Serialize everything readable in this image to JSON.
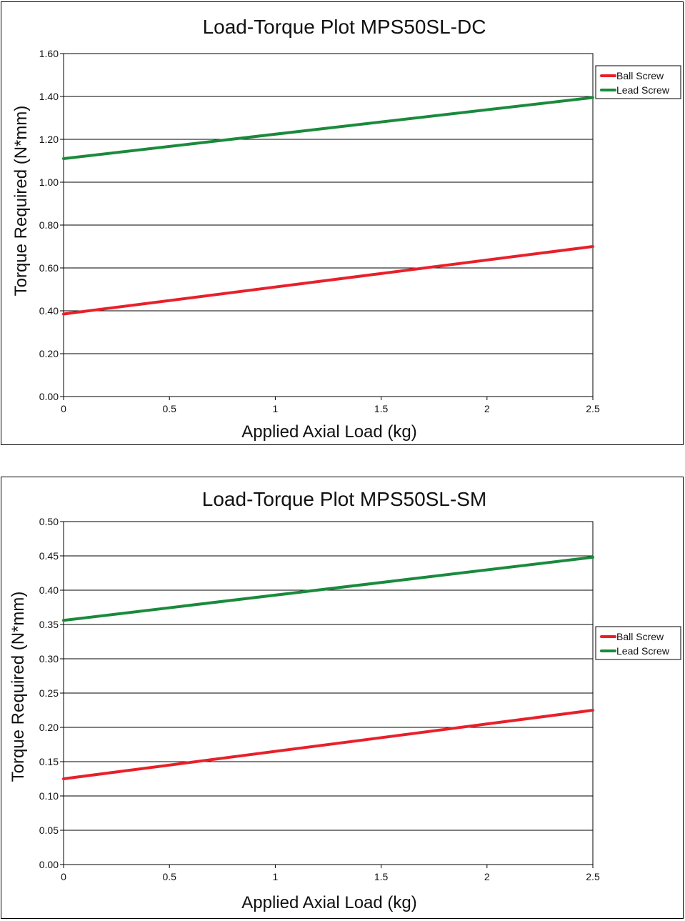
{
  "chart_data": [
    {
      "type": "line",
      "title": "Load-Torque Plot MPS50SL-DC",
      "xlabel": "Applied Axial Load (kg)",
      "ylabel": "Torque Required (N*mm)",
      "xlim": [
        0,
        2.5
      ],
      "ylim": [
        0,
        1.6
      ],
      "x_ticks": [
        "0",
        "0.5",
        "1",
        "1.5",
        "2",
        "2.5"
      ],
      "x_tick_values": [
        0,
        0.5,
        1,
        1.5,
        2,
        2.5
      ],
      "y_ticks": [
        "0.00",
        "0.20",
        "0.40",
        "0.60",
        "0.80",
        "1.00",
        "1.20",
        "1.40",
        "1.60"
      ],
      "y_tick_values": [
        0,
        0.2,
        0.4,
        0.6,
        0.8,
        1.0,
        1.2,
        1.4,
        1.6
      ],
      "grid": "horizontal",
      "legend": "right",
      "series": [
        {
          "name": "Ball Screw",
          "color": "#e8202a",
          "x": [
            0,
            2.5
          ],
          "values": [
            0.385,
            0.7
          ]
        },
        {
          "name": "Lead Screw",
          "color": "#1a8a3c",
          "x": [
            0,
            2.5
          ],
          "values": [
            1.11,
            1.395
          ]
        }
      ]
    },
    {
      "type": "line",
      "title": "Load-Torque Plot MPS50SL-SM",
      "xlabel": "Applied Axial Load (kg)",
      "ylabel": "Torque Required (N*mm)",
      "xlim": [
        0,
        2.5
      ],
      "ylim": [
        0,
        0.5
      ],
      "x_ticks": [
        "0",
        "0.5",
        "1",
        "1.5",
        "2",
        "2.5"
      ],
      "x_tick_values": [
        0,
        0.5,
        1,
        1.5,
        2,
        2.5
      ],
      "y_ticks": [
        "0.00",
        "0.05",
        "0.10",
        "0.15",
        "0.20",
        "0.25",
        "0.30",
        "0.35",
        "0.40",
        "0.45",
        "0.50"
      ],
      "y_tick_values": [
        0,
        0.05,
        0.1,
        0.15,
        0.2,
        0.25,
        0.3,
        0.35,
        0.4,
        0.45,
        0.5
      ],
      "grid": "horizontal",
      "legend": "right",
      "series": [
        {
          "name": "Ball Screw",
          "color": "#e8202a",
          "x": [
            0,
            2.5
          ],
          "values": [
            0.125,
            0.225
          ]
        },
        {
          "name": "Lead Screw",
          "color": "#1a8a3c",
          "x": [
            0,
            2.5
          ],
          "values": [
            0.356,
            0.448
          ]
        }
      ]
    }
  ]
}
